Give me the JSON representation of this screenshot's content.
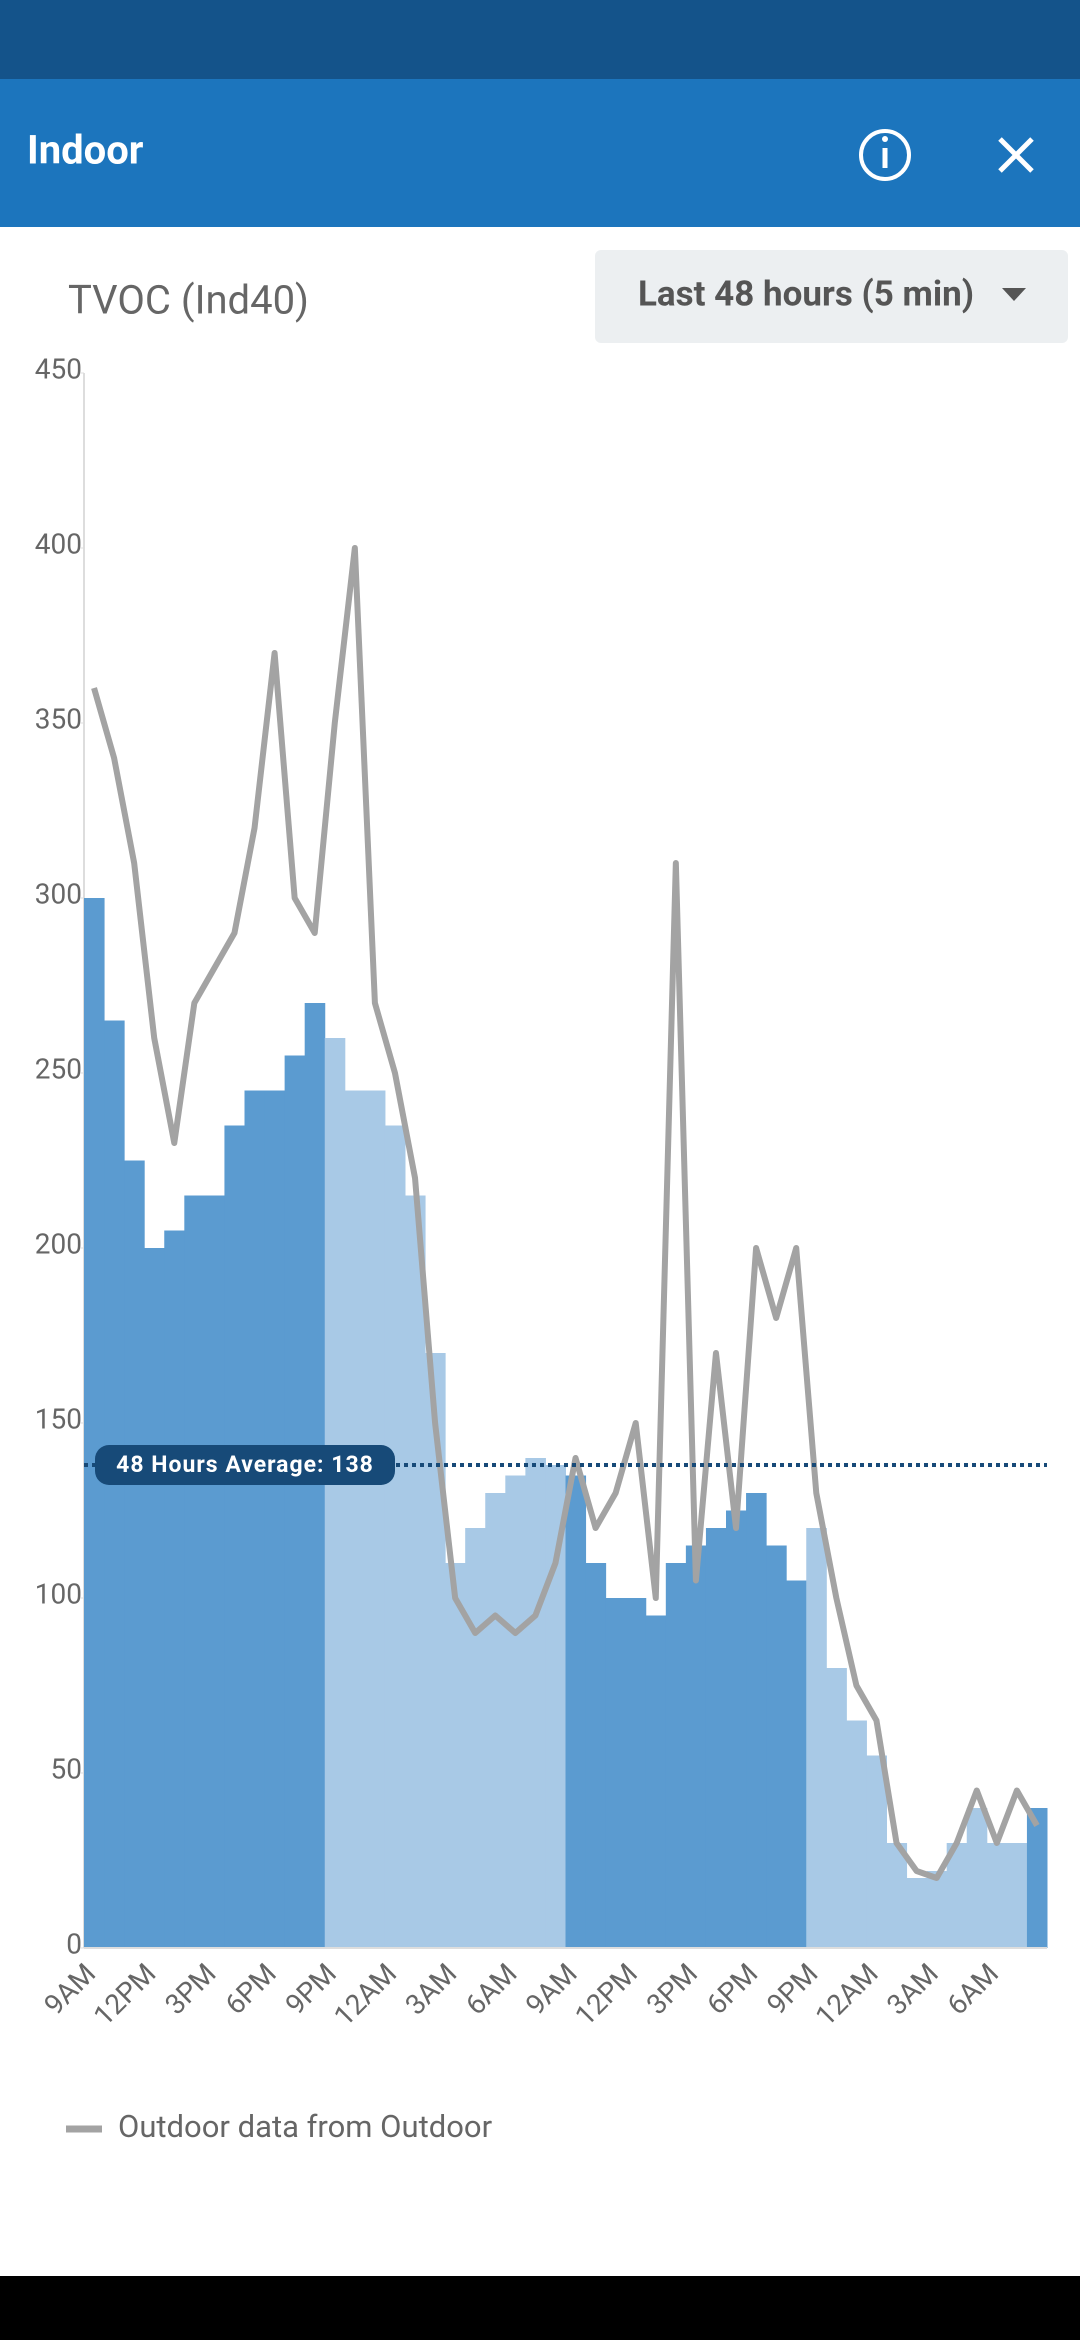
{
  "app_bar": {
    "title": "Indoor"
  },
  "dropdown": {
    "label": "Last 48 hours (5 min)"
  },
  "chart_data": {
    "type": "bar",
    "title": "TVOC (Ind40)",
    "categories": [
      "9AM",
      null,
      null,
      "12PM",
      null,
      null,
      "3PM",
      null,
      null,
      "6PM",
      null,
      null,
      "9PM",
      null,
      null,
      "12AM",
      null,
      null,
      "3AM",
      null,
      null,
      "6AM",
      null,
      null,
      "9AM",
      null,
      null,
      "12PM",
      null,
      null,
      "3PM",
      null,
      null,
      "6PM",
      null,
      null,
      "9PM",
      null,
      null,
      "12AM",
      null,
      null,
      "3AM",
      null,
      null,
      "6AM",
      null,
      null
    ],
    "values": [
      300,
      265,
      225,
      200,
      205,
      215,
      215,
      235,
      245,
      245,
      255,
      270,
      260,
      245,
      245,
      235,
      215,
      170,
      110,
      120,
      130,
      135,
      140,
      138,
      135,
      110,
      100,
      100,
      95,
      110,
      115,
      120,
      125,
      130,
      115,
      105,
      120,
      80,
      65,
      55,
      30,
      20,
      22,
      30,
      40,
      30,
      30,
      40
    ],
    "colors": [
      "#5b9bd0",
      "#5b9bd0",
      "#5b9bd0",
      "#5b9bd0",
      "#5b9bd0",
      "#5b9bd0",
      "#5b9bd0",
      "#5b9bd0",
      "#5b9bd0",
      "#5b9bd0",
      "#5b9bd0",
      "#5b9bd0",
      "#a8c9e6",
      "#a8c9e6",
      "#a8c9e6",
      "#a8c9e6",
      "#a8c9e6",
      "#a8c9e6",
      "#a8c9e6",
      "#a8c9e6",
      "#a8c9e6",
      "#a8c9e6",
      "#a8c9e6",
      "#a8c9e6",
      "#5b9bd0",
      "#5b9bd0",
      "#5b9bd0",
      "#5b9bd0",
      "#5b9bd0",
      "#5b9bd0",
      "#5b9bd0",
      "#5b9bd0",
      "#5b9bd0",
      "#5b9bd0",
      "#5b9bd0",
      "#5b9bd0",
      "#a8c9e6",
      "#a8c9e6",
      "#a8c9e6",
      "#a8c9e6",
      "#a8c9e6",
      "#a8c9e6",
      "#a8c9e6",
      "#a8c9e6",
      "#a8c9e6",
      "#a8c9e6",
      "#a8c9e6",
      "#5b9bd0"
    ],
    "series": [
      {
        "name": "Outdoor data from Outdoor",
        "type": "line",
        "color": "#a3a3a3",
        "values": [
          360,
          340,
          310,
          260,
          230,
          270,
          280,
          290,
          320,
          370,
          300,
          290,
          350,
          400,
          270,
          250,
          220,
          150,
          100,
          90,
          95,
          90,
          95,
          110,
          140,
          120,
          130,
          150,
          100,
          310,
          105,
          170,
          120,
          200,
          180,
          200,
          130,
          100,
          75,
          65,
          30,
          22,
          20,
          30,
          45,
          30,
          45,
          35
        ]
      }
    ],
    "average": {
      "value": 138,
      "label": "48 Hours Average: 138",
      "color": "#174a78"
    },
    "ylim": [
      0,
      450
    ],
    "yticks": [
      0,
      50,
      100,
      150,
      200,
      250,
      300,
      350,
      400,
      450
    ]
  }
}
